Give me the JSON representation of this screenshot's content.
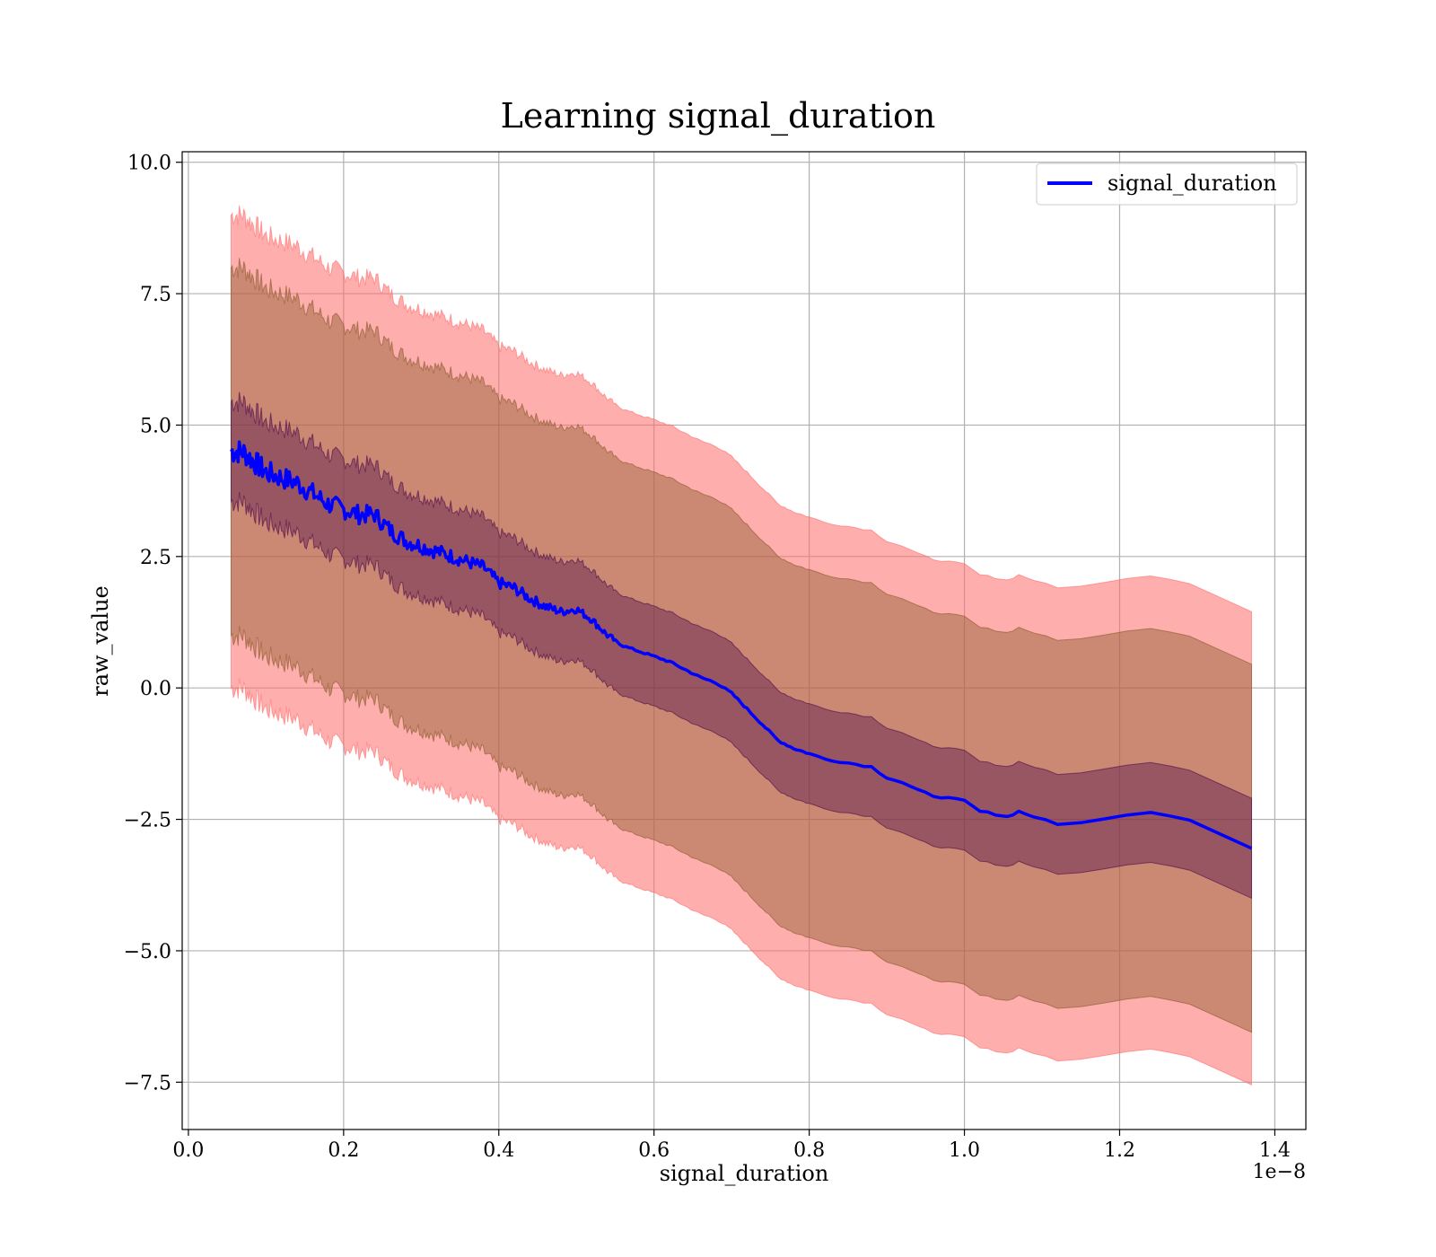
{
  "chart_data": {
    "type": "line",
    "title": "Learning signal_duration",
    "xlabel": "signal_duration",
    "ylabel": "raw_value",
    "x_offset_label": "1e−8",
    "x_scale": 1e-08,
    "xlim": [
      -0.008,
      1.44
    ],
    "ylim": [
      -8.4,
      10.2
    ],
    "x_ticks": [
      0.0,
      0.2,
      0.4,
      0.6,
      0.8,
      1.0,
      1.2,
      1.4
    ],
    "x_tick_labels": [
      "0.0",
      "0.2",
      "0.4",
      "0.6",
      "0.8",
      "1.0",
      "1.2",
      "1.4"
    ],
    "y_ticks": [
      10.0,
      7.5,
      5.0,
      2.5,
      0.0,
      -2.5,
      -5.0,
      -7.5
    ],
    "y_tick_labels": [
      "10.0",
      "7.5",
      "5.0",
      "2.5",
      "0.0",
      "−2.5",
      "−5.0",
      "−7.5"
    ],
    "grid": true,
    "legend": {
      "position": "upper-right",
      "entries": [
        "signal_duration"
      ]
    },
    "colors": {
      "line": "#0000ff",
      "outer_band": "#ff6b6b",
      "middle_band": "#8b5a2b",
      "inner_band": "#4b0a4b",
      "grid": "#b0b0b0"
    },
    "series": [
      {
        "name": "signal_duration",
        "x": [
          0.055,
          0.07,
          0.085,
          0.1,
          0.12,
          0.14,
          0.16,
          0.18,
          0.2,
          0.22,
          0.24,
          0.26,
          0.28,
          0.3,
          0.32,
          0.34,
          0.36,
          0.38,
          0.4,
          0.42,
          0.44,
          0.46,
          0.48,
          0.5,
          0.52,
          0.54,
          0.56,
          0.58,
          0.6,
          0.62,
          0.64,
          0.66,
          0.68,
          0.7,
          0.72,
          0.74,
          0.76,
          0.78,
          0.8,
          0.82,
          0.84,
          0.86,
          0.88,
          0.9,
          0.92,
          0.94,
          0.96,
          0.98,
          1.0,
          1.02,
          1.04,
          1.055,
          1.07,
          1.09,
          1.12,
          1.18,
          1.24,
          1.29,
          1.37
        ],
        "y": [
          4.5,
          4.5,
          4.3,
          4.1,
          4.0,
          3.9,
          3.7,
          3.5,
          3.4,
          3.3,
          3.3,
          3.0,
          2.8,
          2.7,
          2.6,
          2.5,
          2.4,
          2.3,
          2.0,
          1.9,
          1.7,
          1.55,
          1.45,
          1.5,
          1.3,
          1.0,
          0.8,
          0.7,
          0.6,
          0.5,
          0.35,
          0.2,
          0.1,
          -0.1,
          -0.4,
          -0.7,
          -1.0,
          -1.15,
          -1.25,
          -1.35,
          -1.4,
          -1.45,
          -1.5,
          -1.7,
          -1.8,
          -1.95,
          -2.05,
          -2.1,
          -2.15,
          -2.35,
          -2.4,
          -2.45,
          -2.35,
          -2.45,
          -2.6,
          -2.5,
          -2.35,
          -2.5,
          -3.05
        ],
        "bands": [
          {
            "level": "outer",
            "offset": 4.5
          },
          {
            "level": "middle",
            "offset": 3.5
          },
          {
            "level": "inner",
            "offset": 0.95
          }
        ]
      }
    ]
  }
}
